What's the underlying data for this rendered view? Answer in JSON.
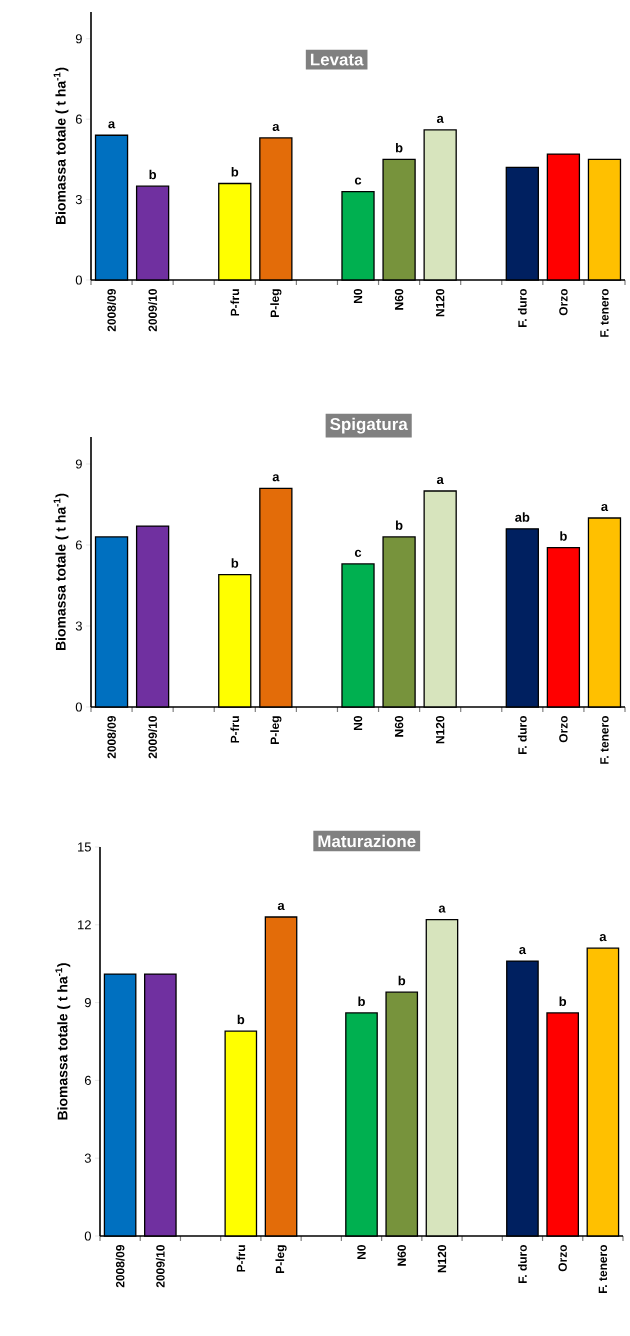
{
  "chart_data": [
    {
      "type": "bar",
      "title": "Levata",
      "ylabel": "Biomassa totale ( t ha$^{-1}$)",
      "categories": [
        "2008/09",
        "2009/10",
        null,
        "P-fru",
        "P-leg",
        null,
        "N0",
        "N60",
        "N120",
        null,
        "F. duro",
        "Orzo",
        "F. tenero"
      ],
      "values": [
        5.4,
        3.5,
        null,
        3.6,
        5.3,
        null,
        3.3,
        4.5,
        5.6,
        null,
        4.2,
        4.7,
        4.5
      ],
      "colors": [
        "#0070c0",
        "#7030a0",
        null,
        "#ffff00",
        "#e36c09",
        null,
        "#00b050",
        "#77933c",
        "#d7e4bd",
        null,
        "#002060",
        "#ff0000",
        "#ffc000"
      ],
      "value_labels": [
        "a",
        "b",
        null,
        "b",
        "a",
        null,
        "c",
        "b",
        "a",
        null,
        null,
        null,
        null
      ],
      "ylim": [
        0,
        10
      ],
      "yticks": [
        0,
        3,
        6,
        9
      ]
    },
    {
      "type": "bar",
      "title": "Spigatura",
      "ylabel": "Biomassa totale ( t ha$^{-1}$)",
      "categories": [
        "2008/09",
        "2009/10",
        null,
        "P-fru",
        "P-leg",
        null,
        "N0",
        "N60",
        "N120",
        null,
        "F. duro",
        "Orzo",
        "F. tenero"
      ],
      "values": [
        6.3,
        6.7,
        null,
        4.9,
        8.1,
        null,
        5.3,
        6.3,
        8.0,
        null,
        6.6,
        5.9,
        7.0
      ],
      "colors": [
        "#0070c0",
        "#7030a0",
        null,
        "#ffff00",
        "#e36c09",
        null,
        "#00b050",
        "#77933c",
        "#d7e4bd",
        null,
        "#002060",
        "#ff0000",
        "#ffc000"
      ],
      "value_labels": [
        null,
        null,
        null,
        "b",
        "a",
        null,
        "c",
        "b",
        "a",
        null,
        "ab",
        "b",
        "a"
      ],
      "ylim": [
        0,
        10
      ],
      "yticks": [
        0,
        3,
        6,
        9
      ]
    },
    {
      "type": "bar",
      "title": "Maturazione",
      "ylabel": "Biomassa totale ( t ha$^{-1}$)",
      "categories": [
        "2008/09",
        "2009/10",
        null,
        "P-fru",
        "P-leg",
        null,
        "N0",
        "N60",
        "N120",
        null,
        "F. duro",
        "Orzo",
        "F. tenero"
      ],
      "values": [
        10.1,
        10.1,
        null,
        7.9,
        12.3,
        null,
        8.6,
        9.4,
        12.2,
        null,
        10.6,
        8.6,
        11.1
      ],
      "colors": [
        "#0070c0",
        "#7030a0",
        null,
        "#ffff00",
        "#e36c09",
        null,
        "#00b050",
        "#77933c",
        "#d7e4bd",
        null,
        "#002060",
        "#ff0000",
        "#ffc000"
      ],
      "value_labels": [
        null,
        null,
        null,
        "b",
        "a",
        null,
        "b",
        "b",
        "a",
        null,
        "a",
        "b",
        "a"
      ],
      "ylim": [
        0,
        15
      ],
      "yticks": [
        0,
        3,
        6,
        9,
        12,
        15
      ]
    }
  ]
}
